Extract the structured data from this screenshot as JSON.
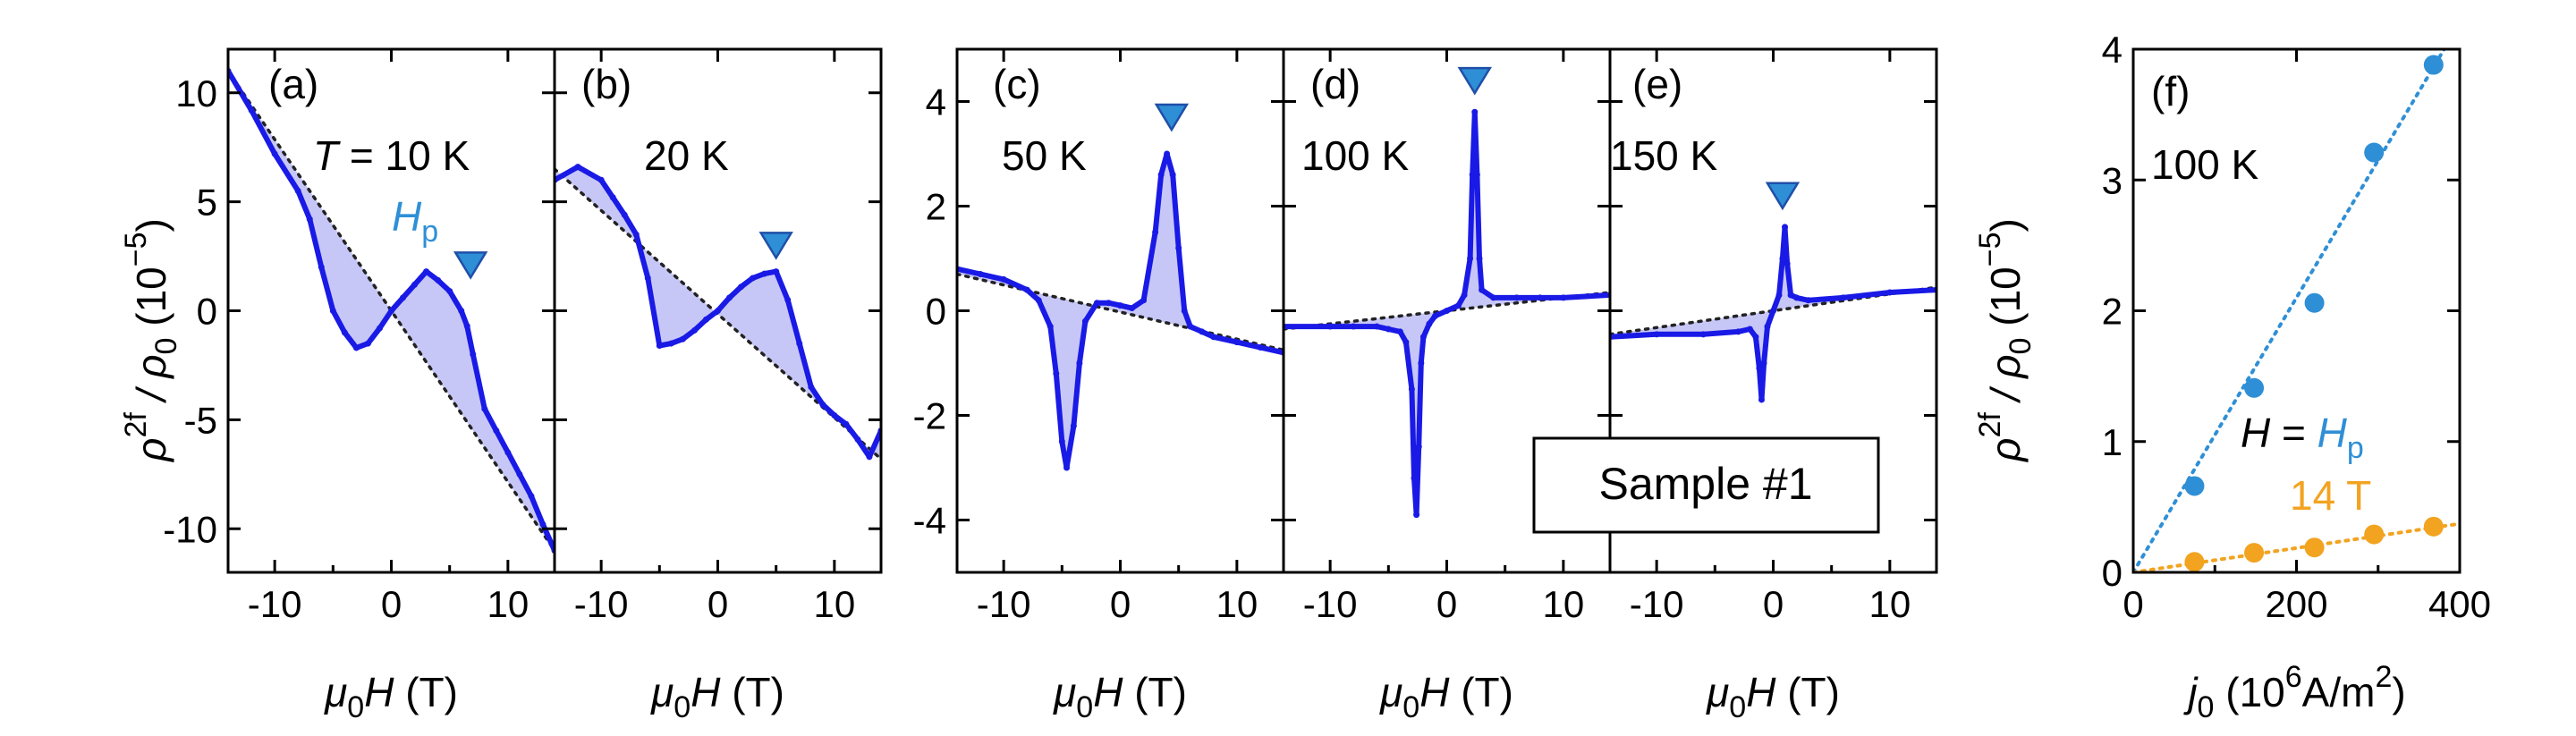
{
  "figure": {
    "sample_label": "Sample #1",
    "y_axis_left": {
      "prefix": "ρ",
      "sup": "2f",
      "mid": " / ρ",
      "sub": "0",
      "unit_open": " (10",
      "unit_sup": "−5",
      "unit_close": ")"
    },
    "x_axis_H": {
      "mu": "μ",
      "sub": "0",
      "var": "H",
      "unit": " (T)"
    }
  },
  "chart_data": [
    {
      "panel": "(a)",
      "type": "line",
      "temperature_label": "T = 10 K",
      "peak_label": "H",
      "peak_label_sub": "p",
      "xlim": [
        -14,
        14
      ],
      "ylim": [
        -12,
        12
      ],
      "xticks": [
        -10,
        0,
        10
      ],
      "yticks": [
        -10,
        -5,
        0,
        5,
        10
      ],
      "x": [
        -14,
        -12,
        -10,
        -8,
        -7,
        -6,
        -5,
        -4,
        -3,
        -2,
        -1,
        0,
        1,
        2,
        3,
        4,
        5,
        6,
        6.5,
        7,
        8,
        9,
        10,
        11,
        12,
        13,
        14
      ],
      "y": [
        11,
        9.2,
        7.2,
        5.5,
        4.2,
        2,
        0,
        -1,
        -1.7,
        -1.5,
        -0.8,
        0,
        0.6,
        1.2,
        1.8,
        1.4,
        0.9,
        0,
        -0.7,
        -2,
        -4.5,
        -5.5,
        -6.5,
        -7.5,
        -8.5,
        -9.8,
        -11
      ],
      "baseline": [
        [
          -14,
          11
        ],
        [
          14,
          -11
        ]
      ],
      "peak_marker": [
        6.8,
        2.1
      ]
    },
    {
      "panel": "(b)",
      "type": "line",
      "temperature_label": "20 K",
      "xlim": [
        -14,
        14
      ],
      "ylim": [
        -12,
        12
      ],
      "xticks": [
        -10,
        0,
        10
      ],
      "yticks": [],
      "x": [
        -14,
        -12,
        -10,
        -9,
        -8,
        -7,
        -6,
        -5,
        -4,
        -3,
        -2,
        -1,
        0,
        1,
        2,
        3,
        4,
        5,
        6,
        7,
        8,
        9,
        10,
        11,
        12,
        13,
        14
      ],
      "y": [
        6,
        6.6,
        6,
        5.2,
        4.4,
        3.5,
        1.5,
        -1.6,
        -1.5,
        -1.3,
        -0.9,
        -0.4,
        0,
        0.6,
        1.1,
        1.5,
        1.7,
        1.8,
        0.5,
        -1.5,
        -3.5,
        -4.3,
        -4.8,
        -5.2,
        -5.9,
        -6.7,
        -5.5
      ],
      "baseline": [
        [
          -14,
          6.5
        ],
        [
          14,
          -6.8
        ]
      ],
      "peak_marker": [
        5,
        3
      ]
    },
    {
      "panel": "(c)",
      "type": "line",
      "temperature_label": "50 K",
      "xlim": [
        -14,
        14
      ],
      "ylim": [
        -5,
        5
      ],
      "xticks": [
        -10,
        0,
        10
      ],
      "yticks": [
        -4,
        -2,
        0,
        2,
        4
      ],
      "x": [
        -14,
        -12,
        -10,
        -8,
        -7,
        -6,
        -5.5,
        -5,
        -4.6,
        -4,
        -3.5,
        -3,
        -2,
        -1,
        0,
        1,
        2,
        3,
        3.5,
        4,
        4.5,
        5,
        5.5,
        6,
        7,
        8,
        10,
        12,
        14
      ],
      "y": [
        0.8,
        0.7,
        0.6,
        0.4,
        0.2,
        -0.3,
        -1.2,
        -2.5,
        -3.0,
        -2.2,
        -1,
        -0.2,
        0.15,
        0.15,
        0.1,
        0.05,
        0.2,
        1.5,
        2.6,
        3.0,
        2.6,
        1.2,
        0,
        -0.3,
        -0.4,
        -0.5,
        -0.6,
        -0.7,
        -0.8
      ],
      "baseline": [
        [
          -14,
          0.7
        ],
        [
          14,
          -0.75
        ]
      ],
      "peak_marker": [
        4.4,
        3.7
      ]
    },
    {
      "panel": "(d)",
      "type": "line",
      "temperature_label": "100 K",
      "xlim": [
        -14,
        14
      ],
      "ylim": [
        -5,
        5
      ],
      "xticks": [
        -10,
        0,
        10
      ],
      "yticks": [],
      "x": [
        -14,
        -10,
        -8,
        -6,
        -5,
        -4,
        -3.5,
        -3,
        -2.8,
        -2.6,
        -2.4,
        -2.2,
        -2,
        -1.5,
        -1,
        0,
        1,
        1.5,
        2,
        2.2,
        2.4,
        2.6,
        2.8,
        3,
        4,
        6,
        8,
        10,
        14
      ],
      "y": [
        -0.3,
        -0.3,
        -0.3,
        -0.3,
        -0.35,
        -0.4,
        -0.6,
        -1.5,
        -3.2,
        -3.9,
        -2.6,
        -1,
        -0.5,
        -0.25,
        -0.1,
        0,
        0.1,
        0.3,
        1.0,
        2.6,
        3.8,
        2.6,
        1.0,
        0.4,
        0.25,
        0.25,
        0.25,
        0.25,
        0.3
      ],
      "baseline": [
        [
          -14,
          -0.35
        ],
        [
          14,
          0.35
        ]
      ],
      "peak_marker": [
        2.4,
        4.4
      ]
    },
    {
      "panel": "(e)",
      "type": "line",
      "temperature_label": "150 K",
      "xlim": [
        -14,
        14
      ],
      "ylim": [
        -5,
        5
      ],
      "xticks": [
        -10,
        0,
        10
      ],
      "yticks": [],
      "x": [
        -14,
        -10,
        -6,
        -3,
        -2,
        -1.5,
        -1.2,
        -1,
        -0.8,
        -0.5,
        0,
        0.5,
        0.8,
        1,
        1.2,
        1.5,
        2,
        3,
        6,
        10,
        14
      ],
      "y": [
        -0.5,
        -0.45,
        -0.45,
        -0.4,
        -0.35,
        -0.5,
        -1.1,
        -1.7,
        -1.0,
        -0.3,
        0,
        0.3,
        1.0,
        1.6,
        0.9,
        0.3,
        0.25,
        0.2,
        0.25,
        0.35,
        0.4
      ],
      "baseline": [
        [
          -14,
          -0.45
        ],
        [
          14,
          0.45
        ]
      ],
      "peak_marker": [
        0.8,
        2.2
      ]
    },
    {
      "panel": "(f)",
      "type": "scatter",
      "temperature_label": "100 K",
      "xlabel": {
        "var": "j",
        "sub": "0",
        "unit_open": " (10",
        "unit_sup": "6",
        "unit_close": "A/m",
        "unit_sup2": "2",
        "unit_end": ")"
      },
      "xlim": [
        0,
        400
      ],
      "ylim": [
        0,
        4
      ],
      "xticks": [
        0,
        200,
        400
      ],
      "yticks": [
        0,
        1,
        2,
        3,
        4
      ],
      "series": [
        {
          "name": "H = Hp",
          "label_prefix": "H = ",
          "label_var": "H",
          "label_sub": "p",
          "color": "#2f8fd6",
          "x": [
            75,
            148,
            222,
            295,
            368
          ],
          "y": [
            0.66,
            1.41,
            2.06,
            3.21,
            3.88
          ],
          "fit_slope": 0.0105
        },
        {
          "name": "14 T",
          "label_prefix": "14 T",
          "color": "#f2a320",
          "x": [
            75,
            148,
            222,
            295,
            368
          ],
          "y": [
            0.08,
            0.15,
            0.19,
            0.29,
            0.35
          ],
          "fit_slope": 0.00093
        }
      ]
    }
  ],
  "colors": {
    "line": "#1a1ae6",
    "shade": "#b4b4f4",
    "marker": "#2f8fd6",
    "orange": "#f2a320"
  }
}
